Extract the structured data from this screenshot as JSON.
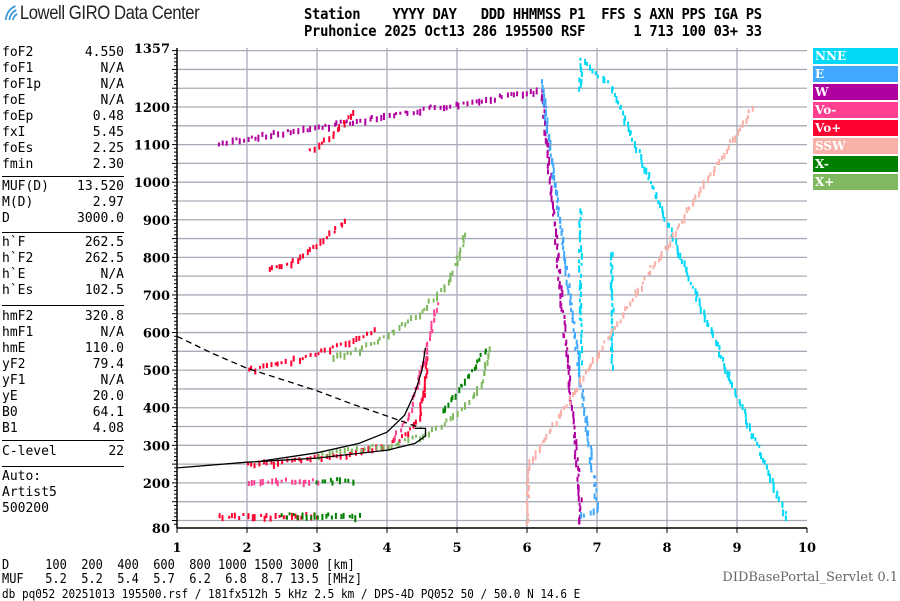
{
  "header": {
    "logo_text": "Lowell GIRO Data Center",
    "line1": "Station    YYYY DAY   DDD HHMMSS P1  FFS S AXN PPS IGA PS",
    "line2": "Pruhonice 2025 Oct13 286 195500 RSF      1 713 100 03+ 33"
  },
  "params": [
    {
      "name": "foF2",
      "value": "4.550"
    },
    {
      "name": "foF1",
      "value": "N/A"
    },
    {
      "name": "foF1p",
      "value": "N/A"
    },
    {
      "name": "foE",
      "value": "N/A"
    },
    {
      "name": "foEp",
      "value": "0.48"
    },
    {
      "name": "fxI",
      "value": "5.45"
    },
    {
      "name": "foEs",
      "value": "2.25"
    },
    {
      "name": "fmin",
      "value": "2.30"
    },
    {
      "name": "MUF(D)",
      "value": "13.520"
    },
    {
      "name": "M(D)",
      "value": "2.97"
    },
    {
      "name": "D",
      "value": "3000.0"
    },
    {
      "name": "h`F",
      "value": "262.5"
    },
    {
      "name": "h`F2",
      "value": "262.5"
    },
    {
      "name": "h`E",
      "value": "N/A"
    },
    {
      "name": "h`Es",
      "value": "102.5"
    },
    {
      "name": "hmF2",
      "value": "320.8"
    },
    {
      "name": "hmF1",
      "value": "N/A"
    },
    {
      "name": "hmE",
      "value": "110.0"
    },
    {
      "name": "yF2",
      "value": "79.4"
    },
    {
      "name": "yF1",
      "value": "N/A"
    },
    {
      "name": "yE",
      "value": "20.0"
    },
    {
      "name": "B0",
      "value": "64.1"
    },
    {
      "name": "B1",
      "value": "4.08"
    },
    {
      "name": "C-level",
      "value": "22"
    }
  ],
  "auto": [
    "Auto:",
    "Artist5",
    "500200"
  ],
  "legend": [
    {
      "label": "NNE",
      "color": "#00d8f8"
    },
    {
      "label": "E",
      "color": "#40a8ff"
    },
    {
      "label": "W",
      "color": "#b000a0"
    },
    {
      "label": "Vo-",
      "color": "#ff4090"
    },
    {
      "label": "Vo+",
      "color": "#ff0030"
    },
    {
      "label": "SSW",
      "color": "#f8b0a8"
    },
    {
      "label": "X-",
      "color": "#008000"
    },
    {
      "label": "X+",
      "color": "#80b860"
    }
  ],
  "footer": {
    "d_row": "D     100  200  400  600  800 1000 1500 3000 [km]",
    "muf_row": "MUF   5.2  5.2  5.4  5.7  6.2  6.8  8.7 13.5 [MHz]",
    "file_line": "db pq052 20251013 195500.rsf / 181fx512h 5 kHz 2.5 km / DPS-4D PQ052 50 / 50.0 N 14.6 E",
    "servlet": "DIDBasePortal_Servlet 0.1"
  },
  "chart_data": {
    "type": "scatter",
    "xlim": [
      1,
      10
    ],
    "ylim": [
      80,
      1357
    ],
    "xticks": [
      "1",
      "2",
      "3",
      "4",
      "5",
      "6",
      "7",
      "8",
      "9",
      "10"
    ],
    "yticks": [
      "80",
      "200",
      "300",
      "400",
      "500",
      "600",
      "700",
      "800",
      "900",
      "1000",
      "1100",
      "1200",
      "1357"
    ],
    "grid": true,
    "legend_placement": "right",
    "traces": [
      {
        "series": "Vo+",
        "points": [
          [
            2.0,
            255
          ],
          [
            2.5,
            262
          ],
          [
            3.0,
            272
          ],
          [
            3.5,
            285
          ],
          [
            4.0,
            305
          ],
          [
            4.3,
            335
          ],
          [
            4.45,
            380
          ],
          [
            4.52,
            450
          ],
          [
            4.55,
            540
          ]
        ]
      },
      {
        "series": "Vo-",
        "points": [
          [
            4.1,
            330
          ],
          [
            4.3,
            380
          ],
          [
            4.4,
            450
          ],
          [
            4.5,
            520
          ],
          [
            4.6,
            600
          ],
          [
            4.7,
            680
          ]
        ]
      },
      {
        "series": "Vo+",
        "points": [
          [
            2.0,
            505
          ],
          [
            2.5,
            525
          ],
          [
            3.0,
            550
          ],
          [
            3.4,
            575
          ],
          [
            3.8,
            610
          ]
        ]
      },
      {
        "series": "Vo+",
        "points": [
          [
            2.3,
            770
          ],
          [
            2.7,
            800
          ],
          [
            3.0,
            840
          ],
          [
            3.4,
            900
          ]
        ]
      },
      {
        "series": "Vo+",
        "points": [
          [
            2.9,
            1090
          ],
          [
            3.2,
            1130
          ],
          [
            3.5,
            1190
          ]
        ]
      },
      {
        "series": "X+",
        "points": [
          [
            3.0,
            280
          ],
          [
            3.5,
            292
          ],
          [
            4.0,
            305
          ],
          [
            4.5,
            330
          ],
          [
            4.8,
            360
          ],
          [
            5.0,
            390
          ],
          [
            5.2,
            430
          ],
          [
            5.35,
            480
          ],
          [
            5.45,
            560
          ]
        ]
      },
      {
        "series": "X-",
        "points": [
          [
            4.8,
            400
          ],
          [
            5.0,
            450
          ],
          [
            5.2,
            500
          ],
          [
            5.4,
            560
          ]
        ]
      },
      {
        "series": "X+",
        "points": [
          [
            3.2,
            540
          ],
          [
            3.6,
            560
          ],
          [
            4.0,
            600
          ],
          [
            4.4,
            650
          ],
          [
            4.8,
            720
          ],
          [
            5.0,
            800
          ],
          [
            5.1,
            870
          ]
        ]
      },
      {
        "series": "Vo+",
        "points": [
          [
            1.6,
            115
          ],
          [
            2.0,
            117
          ],
          [
            2.5,
            117
          ],
          [
            3.0,
            117
          ]
        ]
      },
      {
        "series": "X-",
        "points": [
          [
            2.5,
            118
          ],
          [
            3.0,
            118
          ],
          [
            3.6,
            116
          ]
        ]
      },
      {
        "series": "Vo-",
        "points": [
          [
            2.0,
            210
          ],
          [
            2.5,
            210
          ],
          [
            3.0,
            210
          ]
        ]
      },
      {
        "series": "X-",
        "points": [
          [
            3.0,
            210
          ],
          [
            3.5,
            210
          ]
        ]
      },
      {
        "series": "NNE",
        "points": [
          [
            6.75,
            500
          ],
          [
            6.75,
            600
          ],
          [
            6.75,
            700
          ],
          [
            6.75,
            800
          ],
          [
            6.75,
            930
          ]
        ]
      },
      {
        "series": "NNE",
        "points": [
          [
            7.2,
            520
          ],
          [
            7.2,
            650
          ],
          [
            7.2,
            820
          ]
        ]
      },
      {
        "series": "NNE",
        "points": [
          [
            6.75,
            1250
          ],
          [
            6.75,
            1330
          ],
          [
            7.2,
            1260
          ],
          [
            9.7,
            110
          ]
        ]
      },
      {
        "series": "W",
        "points": [
          [
            6.75,
            100
          ],
          [
            6.75,
            160
          ],
          [
            6.2,
            1250
          ],
          [
            1.6,
            1110
          ]
        ]
      },
      {
        "series": "E",
        "points": [
          [
            6.75,
            120
          ],
          [
            7.0,
            130
          ],
          [
            6.2,
            1270
          ]
        ]
      },
      {
        "series": "SSW",
        "points": [
          [
            6.0,
            100
          ],
          [
            6.0,
            250
          ],
          [
            9.2,
            1200
          ]
        ]
      }
    ],
    "curves": [
      {
        "style": "solid",
        "points": [
          [
            1.0,
            240
          ],
          [
            2.0,
            255
          ],
          [
            3.0,
            266
          ],
          [
            4.0,
            287
          ],
          [
            4.4,
            305
          ],
          [
            4.55,
            325
          ],
          [
            4.55,
            345
          ],
          [
            4.4,
            345
          ]
        ]
      },
      {
        "style": "solid",
        "points": [
          [
            2.2,
            258
          ],
          [
            3.0,
            280
          ],
          [
            3.6,
            305
          ],
          [
            4.0,
            335
          ],
          [
            4.25,
            380
          ],
          [
            4.4,
            440
          ],
          [
            4.5,
            500
          ],
          [
            4.55,
            560
          ]
        ]
      },
      {
        "style": "dashed",
        "points": [
          [
            1.0,
            590
          ],
          [
            1.5,
            545
          ],
          [
            2.0,
            505
          ],
          [
            2.5,
            475
          ],
          [
            3.0,
            445
          ],
          [
            3.5,
            410
          ],
          [
            4.0,
            378
          ],
          [
            4.5,
            345
          ]
        ]
      }
    ]
  }
}
